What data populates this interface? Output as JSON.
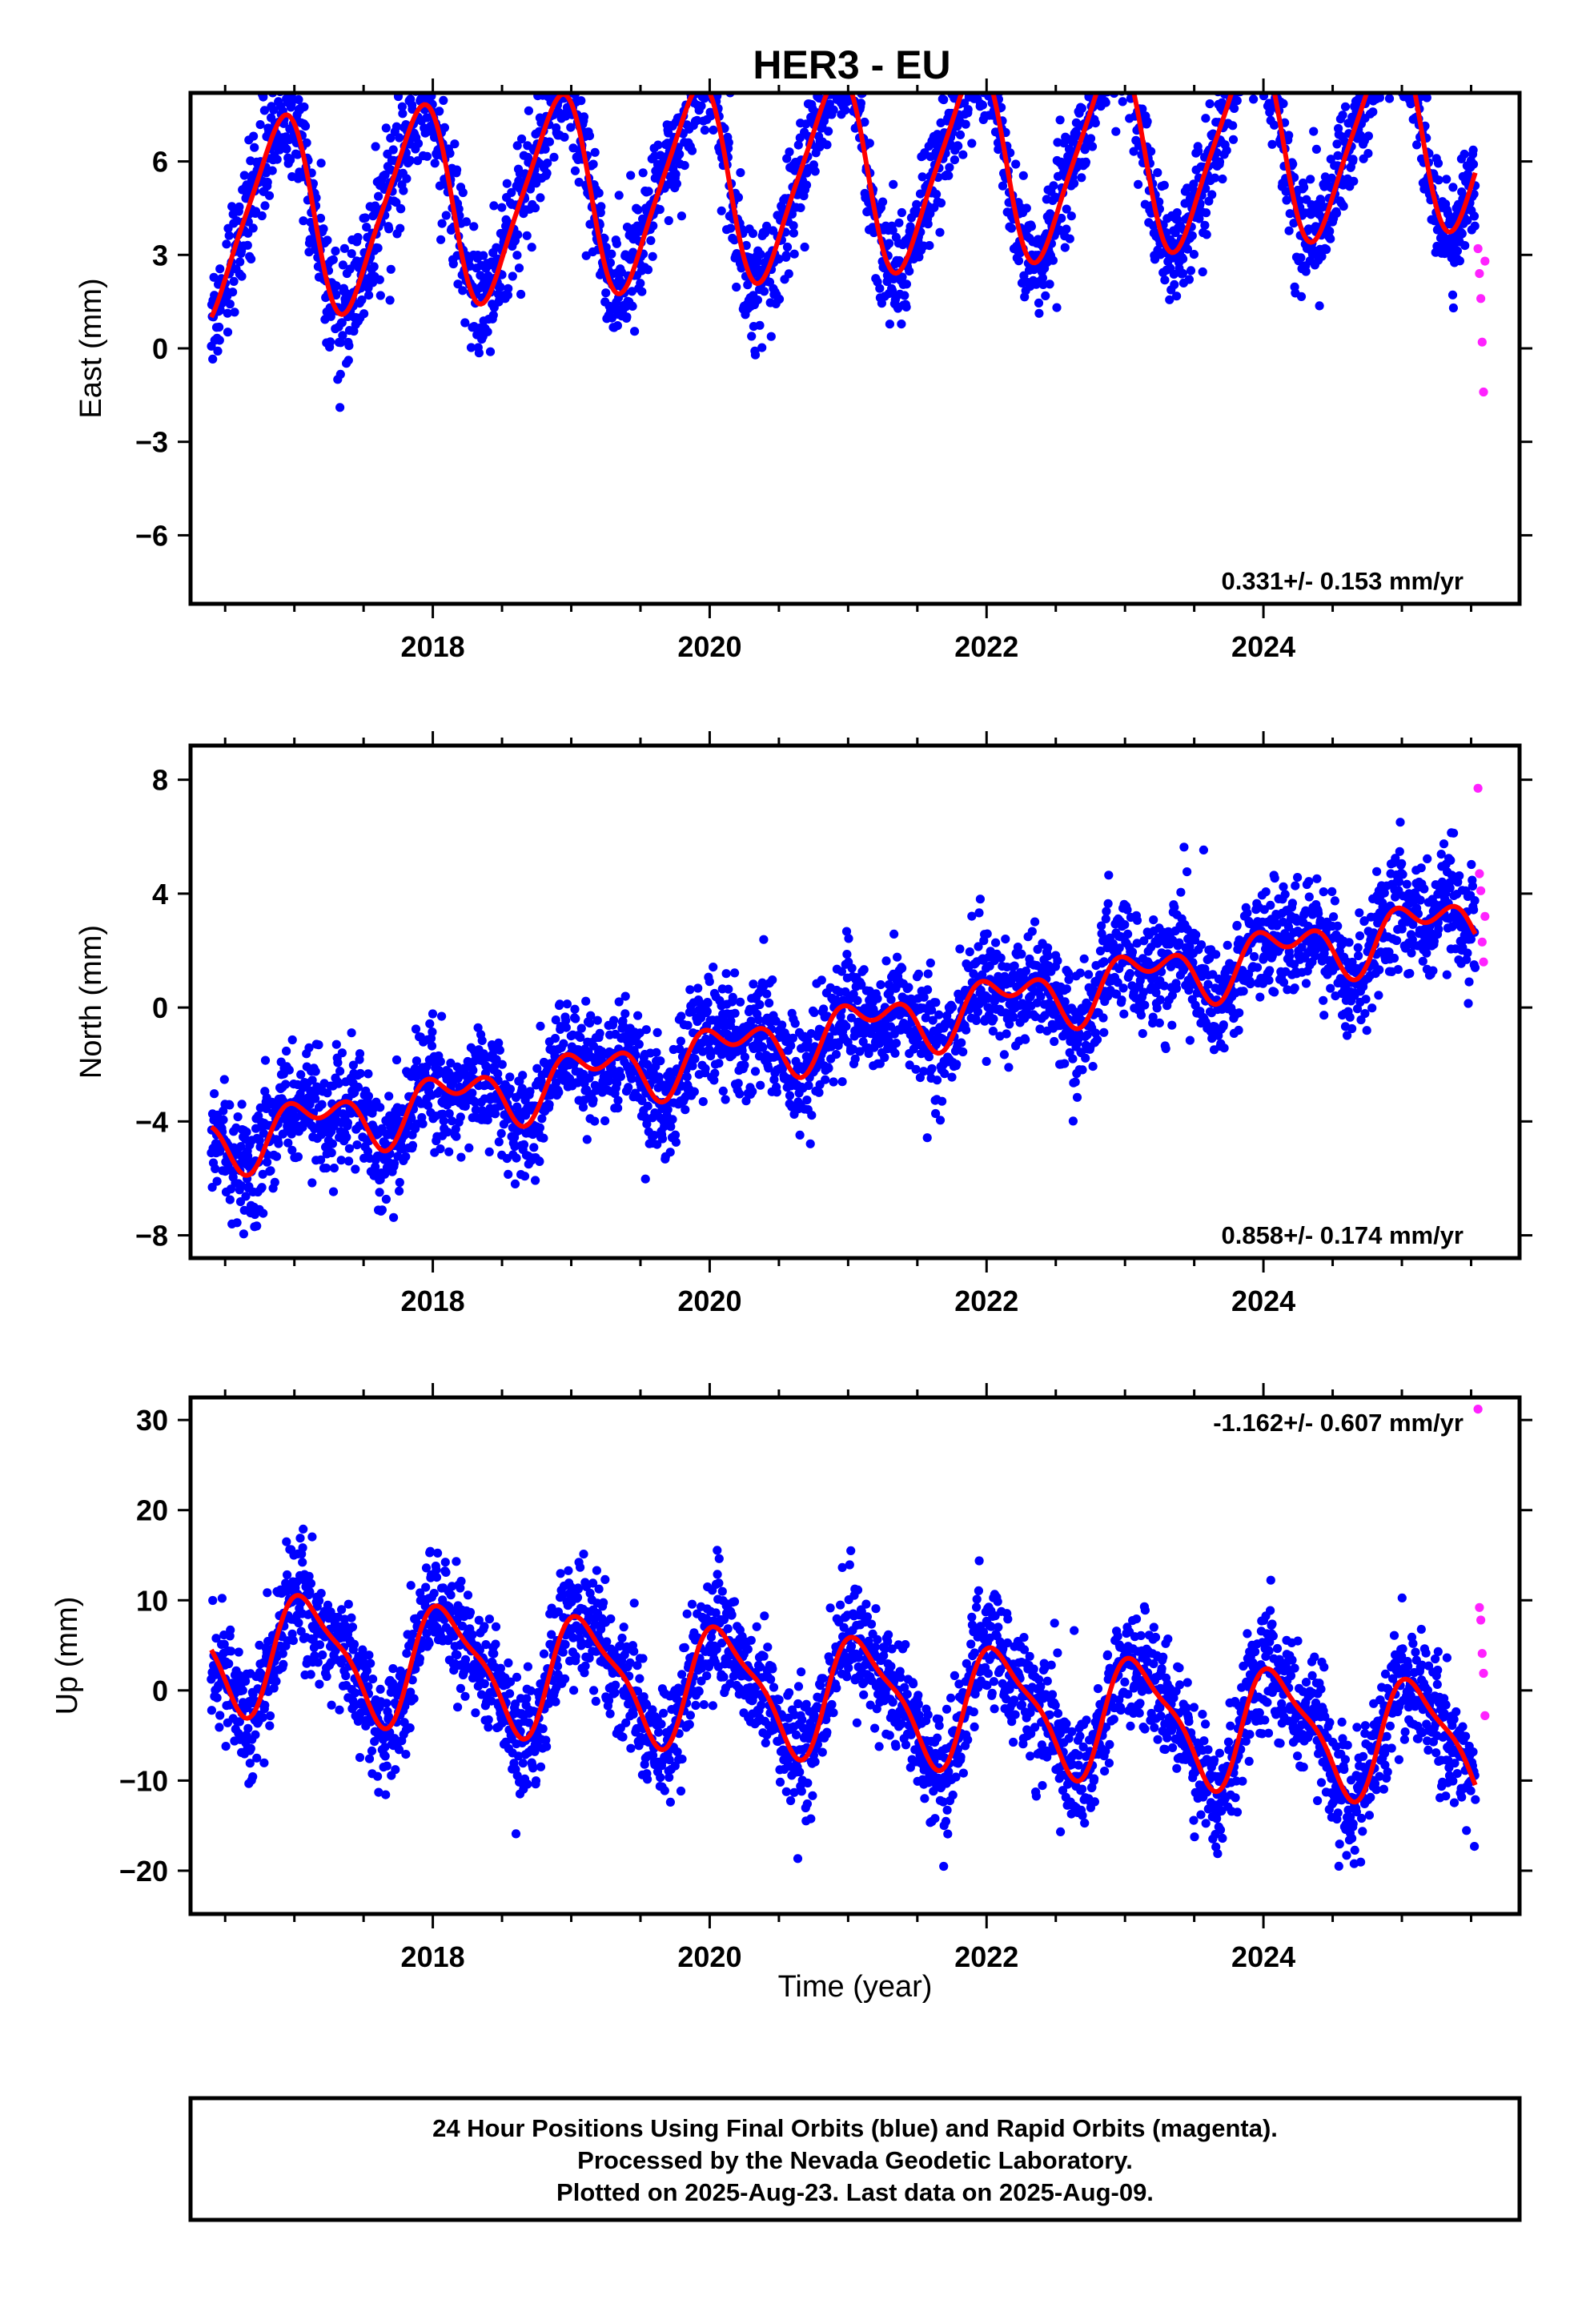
{
  "chart_data": {
    "type": "scatter",
    "title": "HER3 - EU",
    "xlabel": "Time (year)",
    "xlim": [
      2016.25,
      2025.85
    ],
    "x_ticks": [
      2018,
      2020,
      2022,
      2024
    ],
    "x_tick_labels": [
      "2018",
      "2020",
      "2022",
      "2024"
    ],
    "legend": "none",
    "grid": false,
    "colors": {
      "final": "#0000ff",
      "rapid": "#ff22ff",
      "model": "#ff0000",
      "frame": "#000000"
    },
    "series_description_note": "",
    "panels": [
      {
        "id": "east",
        "ylabel": "East (mm)",
        "ylim": [
          -8.2,
          8.2
        ],
        "y_ticks": [
          -6,
          -3,
          0,
          3,
          6
        ],
        "y_tick_labels": [
          "−6",
          "−3",
          "0",
          "3",
          "6"
        ],
        "rate_label": "0.331+/- 0.153 mm/yr",
        "rate_position": "bottom-right",
        "model": {
          "start_time": 2016.4,
          "start_value": 1.0,
          "slope": 0.331,
          "annual_amplitude": 3.1,
          "annual_phase": 2.25,
          "semiannual_amplitude": 0.55,
          "semiannual_phase": 1.3
        },
        "scatter_sigma": 0.9,
        "rapid_points": [
          [
            2025.55,
            3.2
          ],
          [
            2025.56,
            2.4
          ],
          [
            2025.57,
            1.6
          ],
          [
            2025.58,
            0.2
          ],
          [
            2025.59,
            -1.4
          ],
          [
            2025.6,
            2.8
          ]
        ]
      },
      {
        "id": "north",
        "ylabel": "North (mm)",
        "ylim": [
          -8.8,
          9.2
        ],
        "y_ticks": [
          -8,
          -4,
          0,
          4,
          8
        ],
        "y_tick_labels": [
          "−8",
          "−4",
          "0",
          "4",
          "8"
        ],
        "rate_label": "0.858+/- 0.174 mm/yr",
        "rate_position": "bottom-right",
        "model": {
          "start_time": 2016.4,
          "start_value": -4.2,
          "slope": 0.858,
          "annual_amplitude": 0.8,
          "annual_phase": 0.7,
          "semiannual_amplitude": 0.6,
          "semiannual_phase": 2.6
        },
        "scatter_sigma": 1.0,
        "rapid_points": [
          [
            2025.55,
            7.7
          ],
          [
            2025.56,
            4.7
          ],
          [
            2025.57,
            4.1
          ],
          [
            2025.58,
            2.3
          ],
          [
            2025.59,
            1.6
          ],
          [
            2025.6,
            3.2
          ]
        ]
      },
      {
        "id": "up",
        "ylabel": "Up (mm)",
        "ylim": [
          -24.8,
          32.5
        ],
        "y_ticks": [
          -20,
          -10,
          0,
          10,
          20,
          30
        ],
        "y_tick_labels": [
          "−20",
          "−10",
          "0",
          "10",
          "20",
          "30"
        ],
        "rate_label": "-1.162+/- 0.607 mm/yr",
        "rate_position": "top-right",
        "model": {
          "start_time": 2016.4,
          "start_value": 4.5,
          "slope": -1.162,
          "annual_amplitude": 6.3,
          "annual_phase": 0.9,
          "semiannual_amplitude": 1.8,
          "semiannual_phase": 2.2
        },
        "scatter_sigma": 3.3,
        "rapid_points": [
          [
            2025.55,
            31.2
          ],
          [
            2025.56,
            9.2
          ],
          [
            2025.57,
            7.8
          ],
          [
            2025.58,
            4.1
          ],
          [
            2025.59,
            1.9
          ],
          [
            2025.6,
            -2.8
          ]
        ]
      }
    ],
    "data_span": [
      2016.4,
      2025.53
    ],
    "daily_points_per_panel": 2900
  },
  "footer": {
    "line1": "24 Hour Positions Using Final Orbits (blue) and Rapid Orbits (magenta).",
    "line2": "Processed by the Nevada Geodetic Laboratory.",
    "line3": "Plotted on 2025-Aug-23. Last data on 2025-Aug-09."
  }
}
